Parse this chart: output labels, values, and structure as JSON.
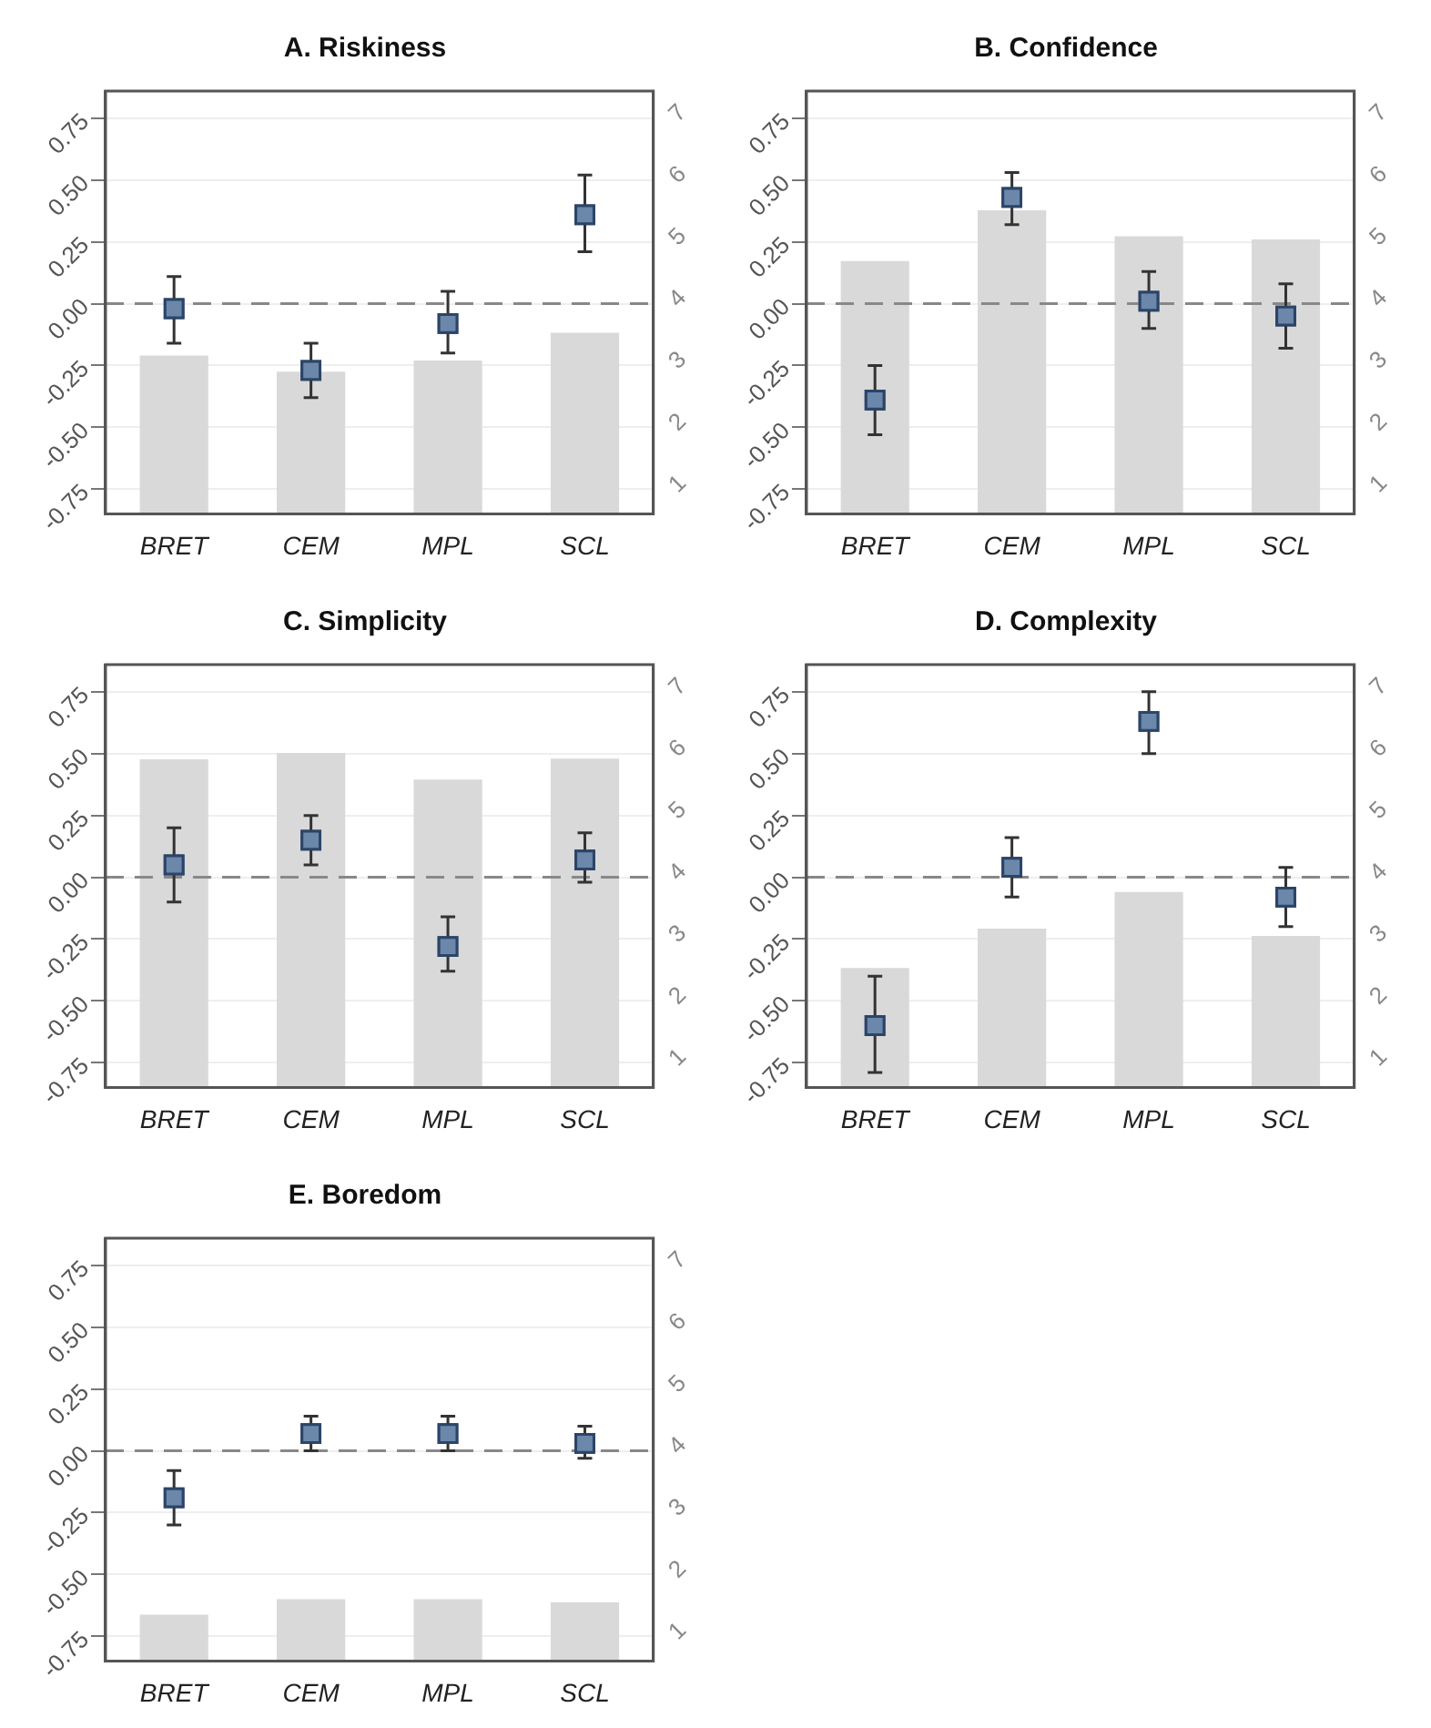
{
  "chart_data": [
    {
      "type": "bar",
      "title": "A. Riskiness",
      "categories": [
        "BRET",
        "CEM",
        "MPL",
        "SCL"
      ],
      "series": [
        {
          "axis": "y2",
          "color": "#d9d9d9",
          "values": [
            3.16,
            2.9,
            3.08,
            3.53
          ]
        },
        {
          "type": "scatter",
          "color": "#6b88ab",
          "values": [
            -0.02,
            -0.27,
            -0.08,
            0.36
          ],
          "errors": [
            [
              -0.16,
              0.11
            ],
            [
              -0.38,
              -0.16
            ],
            [
              -0.2,
              0.05
            ],
            [
              0.21,
              0.52
            ]
          ]
        }
      ],
      "ylim": [
        -0.85,
        0.86
      ],
      "yticks": [
        -0.75,
        {
          "value": -0.5,
          "label": "-0.50"
        },
        -0.25,
        {
          "value": 0,
          "label": "0.00"
        },
        0.25,
        {
          "value": 0.5,
          "label": "0.50"
        },
        0.75
      ],
      "y2lim": [
        0.6,
        7.44
      ],
      "y2ticks": [
        1,
        2,
        3,
        4,
        5,
        6,
        7
      ],
      "ref_lines": [
        {
          "axis": "y",
          "value": 0,
          "line_style": "dashed",
          "color": "#888888"
        }
      ],
      "grid": "y",
      "marker": "square"
    },
    {
      "type": "bar",
      "title": "B. Confidence",
      "categories": [
        "BRET",
        "CEM",
        "MPL",
        "SCL"
      ],
      "series": [
        {
          "axis": "y2",
          "color": "#d9d9d9",
          "values": [
            4.69,
            5.51,
            5.09,
            5.04
          ]
        },
        {
          "type": "scatter",
          "color": "#6b88ab",
          "values": [
            -0.39,
            0.43,
            0.01,
            -0.05
          ],
          "errors": [
            [
              -0.53,
              -0.25
            ],
            [
              0.32,
              0.53
            ],
            [
              -0.1,
              0.13
            ],
            [
              -0.18,
              0.08
            ]
          ]
        }
      ],
      "ylim": [
        -0.85,
        0.86
      ],
      "yticks": [
        -0.75,
        {
          "value": -0.5,
          "label": "-0.50"
        },
        -0.25,
        {
          "value": 0,
          "label": "0.00"
        },
        0.25,
        {
          "value": 0.5,
          "label": "0.50"
        },
        0.75
      ],
      "y2lim": [
        0.6,
        7.44
      ],
      "y2ticks": [
        1,
        2,
        3,
        4,
        5,
        6,
        7
      ],
      "ref_lines": [
        {
          "axis": "y",
          "value": 0,
          "line_style": "dashed",
          "color": "#888888"
        }
      ],
      "grid": "y",
      "marker": "square"
    },
    {
      "type": "bar",
      "title": "C. Simplicity",
      "categories": [
        "BRET",
        "CEM",
        "MPL",
        "SCL"
      ],
      "series": [
        {
          "axis": "y2",
          "color": "#d9d9d9",
          "values": [
            5.91,
            6.01,
            5.58,
            5.92
          ]
        },
        {
          "type": "scatter",
          "color": "#6b88ab",
          "values": [
            0.05,
            0.15,
            -0.28,
            0.07
          ],
          "errors": [
            [
              -0.1,
              0.2
            ],
            [
              0.05,
              0.25
            ],
            [
              -0.38,
              -0.16
            ],
            [
              -0.02,
              0.18
            ]
          ]
        }
      ],
      "ylim": [
        -0.85,
        0.86
      ],
      "yticks": [
        -0.75,
        {
          "value": -0.5,
          "label": "-0.50"
        },
        -0.25,
        {
          "value": 0,
          "label": "0.00"
        },
        0.25,
        {
          "value": 0.5,
          "label": "0.50"
        },
        0.75
      ],
      "y2lim": [
        0.6,
        7.44
      ],
      "y2ticks": [
        1,
        2,
        3,
        4,
        5,
        6,
        7
      ],
      "ref_lines": [
        {
          "axis": "y",
          "value": 0,
          "line_style": "dashed",
          "color": "#888888"
        }
      ],
      "grid": "y",
      "marker": "square"
    },
    {
      "type": "bar",
      "title": "D. Complexity",
      "categories": [
        "BRET",
        "CEM",
        "MPL",
        "SCL"
      ],
      "series": [
        {
          "axis": "y2",
          "color": "#d9d9d9",
          "values": [
            2.53,
            3.17,
            3.76,
            3.05
          ]
        },
        {
          "type": "scatter",
          "color": "#6b88ab",
          "values": [
            -0.6,
            0.04,
            0.63,
            -0.08
          ],
          "errors": [
            [
              -0.79,
              -0.4
            ],
            [
              -0.08,
              0.16
            ],
            [
              0.5,
              0.75
            ],
            [
              -0.2,
              0.04
            ]
          ]
        }
      ],
      "ylim": [
        -0.85,
        0.86
      ],
      "yticks": [
        -0.75,
        {
          "value": -0.5,
          "label": "-0.50"
        },
        -0.25,
        {
          "value": 0,
          "label": "0.00"
        },
        0.25,
        {
          "value": 0.5,
          "label": "0.50"
        },
        0.75
      ],
      "y2lim": [
        0.6,
        7.44
      ],
      "y2ticks": [
        1,
        2,
        3,
        4,
        5,
        6,
        7
      ],
      "ref_lines": [
        {
          "axis": "y",
          "value": 0,
          "line_style": "dashed",
          "color": "#888888"
        }
      ],
      "grid": "y",
      "marker": "square"
    },
    {
      "type": "bar",
      "title": "E. Boredom",
      "categories": [
        "BRET",
        "CEM",
        "MPL",
        "SCL"
      ],
      "series": [
        {
          "axis": "y2",
          "color": "#d9d9d9",
          "values": [
            1.35,
            1.6,
            1.6,
            1.55
          ]
        },
        {
          "type": "scatter",
          "color": "#6b88ab",
          "values": [
            -0.19,
            0.07,
            0.07,
            0.03
          ],
          "errors": [
            [
              -0.3,
              -0.08
            ],
            [
              0.0,
              0.14
            ],
            [
              0.0,
              0.14
            ],
            [
              -0.03,
              0.1
            ]
          ]
        }
      ],
      "ylim": [
        -0.85,
        0.86
      ],
      "yticks": [
        -0.75,
        {
          "value": -0.5,
          "label": "-0.50"
        },
        -0.25,
        {
          "value": 0,
          "label": "0.00"
        },
        0.25,
        {
          "value": 0.5,
          "label": "0.50"
        },
        0.75
      ],
      "y2lim": [
        0.6,
        7.44
      ],
      "y2ticks": [
        1,
        2,
        3,
        4,
        5,
        6,
        7
      ],
      "ref_lines": [
        {
          "axis": "y",
          "value": 0,
          "line_style": "dashed",
          "color": "#888888"
        }
      ],
      "grid": "y",
      "marker": "square"
    }
  ]
}
